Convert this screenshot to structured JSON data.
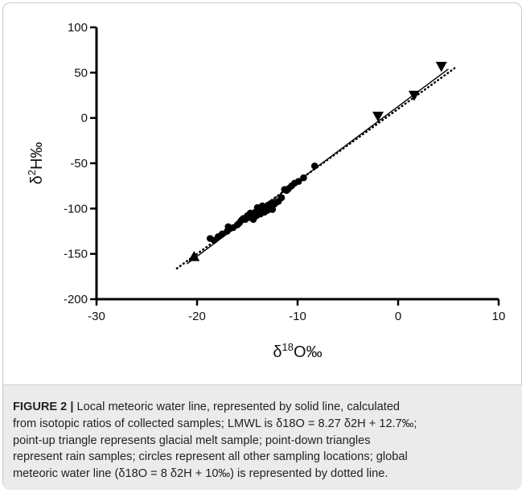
{
  "chart_data": {
    "type": "scatter",
    "title": "",
    "xlabel": "δ18O‰",
    "ylabel": "δ2H‰",
    "xlim": [
      -30,
      10
    ],
    "ylim": [
      -200,
      100
    ],
    "xticks": [
      "-30",
      "-20",
      "-10",
      "0",
      "10"
    ],
    "yticks": [
      "100",
      "50",
      "0",
      "-50",
      "-100",
      "-150",
      "-200"
    ],
    "grid": false,
    "series": [
      {
        "marker": "triangle-up",
        "points": [
          [
            -20.3,
            -153
          ]
        ]
      },
      {
        "marker": "triangle-down",
        "points": [
          [
            -2.0,
            2
          ],
          [
            1.6,
            25
          ],
          [
            4.3,
            57
          ]
        ]
      },
      {
        "marker": "circle",
        "points": [
          [
            -18.7,
            -133
          ],
          [
            -18.3,
            -135
          ],
          [
            -17.9,
            -131
          ],
          [
            -17.5,
            -128
          ],
          [
            -17.0,
            -125
          ],
          [
            -16.7,
            -122
          ],
          [
            -16.4,
            -121
          ],
          [
            -16.0,
            -118
          ],
          [
            -15.8,
            -116
          ],
          [
            -15.6,
            -113
          ],
          [
            -15.4,
            -111
          ],
          [
            -15.2,
            -112
          ],
          [
            -15.0,
            -108
          ],
          [
            -14.9,
            -110
          ],
          [
            -14.7,
            -105
          ],
          [
            -14.6,
            -107
          ],
          [
            -14.4,
            -112
          ],
          [
            -14.2,
            -104
          ],
          [
            -14.1,
            -108
          ],
          [
            -13.9,
            -101
          ],
          [
            -13.8,
            -103
          ],
          [
            -13.7,
            -106
          ],
          [
            -13.5,
            -97
          ],
          [
            -13.4,
            -99
          ],
          [
            -13.3,
            -104
          ],
          [
            -13.2,
            -100
          ],
          [
            -13.0,
            -102
          ],
          [
            -12.9,
            -96
          ],
          [
            -12.7,
            -98
          ],
          [
            -12.5,
            -101
          ],
          [
            -12.3,
            -95
          ],
          [
            -12.1,
            -93
          ],
          [
            -11.9,
            -92
          ],
          [
            -11.6,
            -88
          ],
          [
            -11.3,
            -79
          ],
          [
            -11.1,
            -80
          ],
          [
            -10.9,
            -78
          ],
          [
            -10.6,
            -75
          ],
          [
            -10.3,
            -72
          ],
          [
            -9.9,
            -70
          ],
          [
            -9.4,
            -66
          ],
          [
            -8.3,
            -53
          ],
          [
            -16.9,
            -120
          ],
          [
            -14.0,
            -99
          ],
          [
            -12.6,
            -94
          ]
        ]
      }
    ],
    "lines": [
      {
        "style": "solid",
        "label": "LMWL",
        "slope": 8.27,
        "intercept": 12.7,
        "x_range": [
          -21.0,
          5.0
        ]
      },
      {
        "style": "dotted",
        "label": "GMWL",
        "slope": 8,
        "intercept": 10,
        "x_range": [
          -22.0,
          5.6
        ]
      }
    ]
  },
  "caption": {
    "label": "FIGURE 2 |",
    "lines": [
      " Local meteoric water line, represented by solid line, calculated",
      "from isotopic ratios of collected samples; LMWL is δ18O = 8.27 δ2H + 12.7‰;",
      "point-up triangle represents glacial melt sample; point-down triangles",
      "represent rain samples; circles represent all other sampling locations; global",
      "meteoric water line (δ18O = 8 δ2H + 10‰) is represented by dotted line."
    ]
  }
}
